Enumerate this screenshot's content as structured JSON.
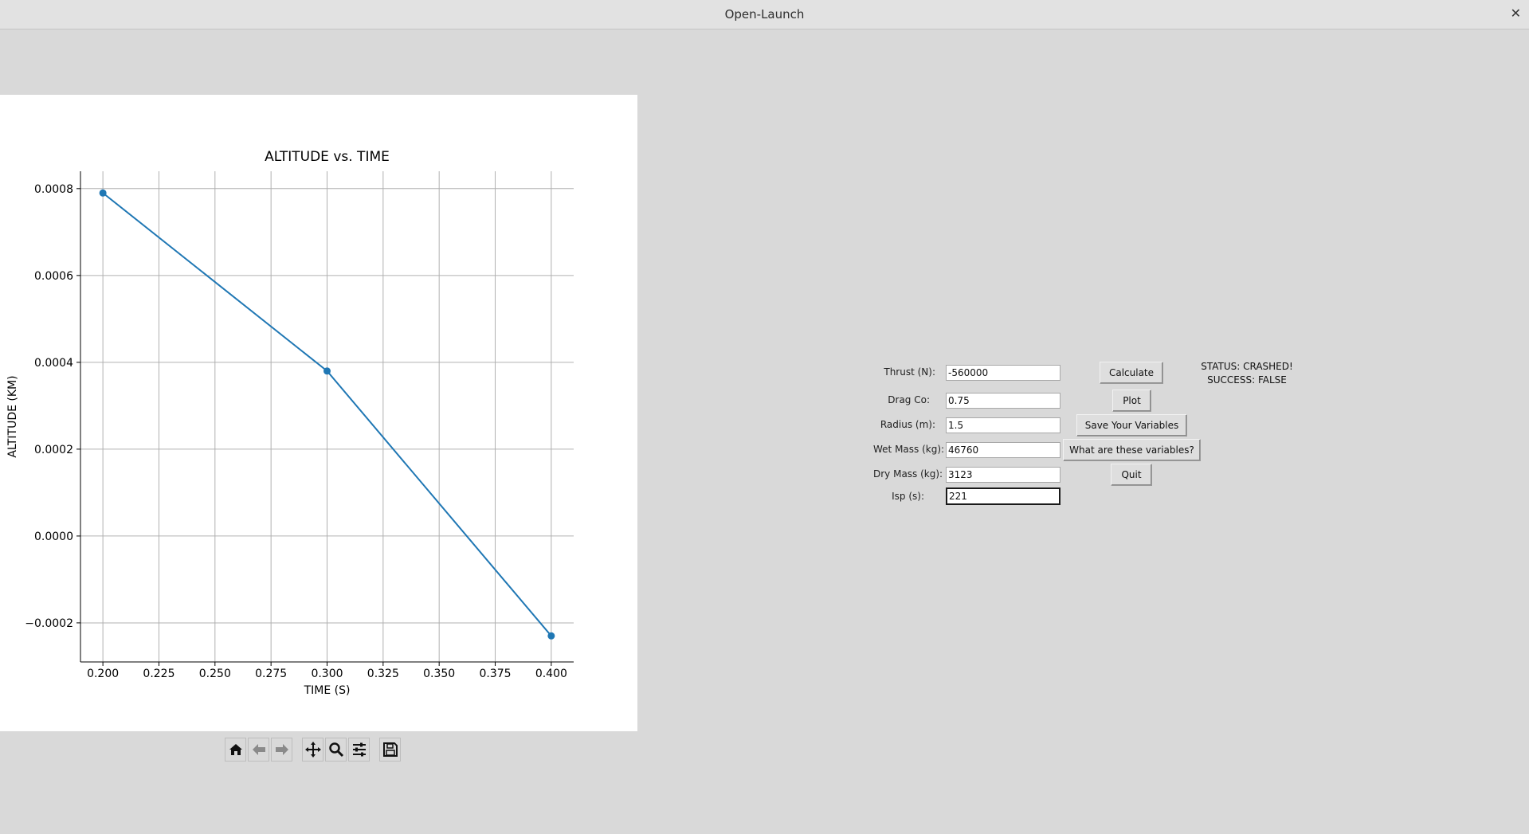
{
  "window": {
    "title": "Open-Launch",
    "close_glyph": "✕"
  },
  "chart_data": {
    "type": "line",
    "title": "ALTITUDE vs. TIME",
    "xlabel": "TIME (S)",
    "ylabel": "ALTITUDE (KM)",
    "x": [
      0.2,
      0.3,
      0.4
    ],
    "series": [
      {
        "values": [
          0.00079,
          0.00038,
          -0.00023
        ]
      }
    ],
    "xlim": [
      0.19,
      0.41
    ],
    "ylim": [
      -0.00029,
      0.00084
    ],
    "xticks": [
      0.2,
      0.225,
      0.25,
      0.275,
      0.3,
      0.325,
      0.35,
      0.375,
      0.4
    ],
    "xtick_labels": [
      "0.200",
      "0.225",
      "0.250",
      "0.275",
      "0.300",
      "0.325",
      "0.350",
      "0.375",
      "0.400"
    ],
    "yticks": [
      -0.0002,
      0.0,
      0.0002,
      0.0004,
      0.0006,
      0.0008
    ],
    "ytick_labels": [
      "−0.0002",
      "0.0000",
      "0.0002",
      "0.0004",
      "0.0006",
      "0.0008"
    ],
    "grid": true,
    "marker": "circle",
    "color": "#1f77b4"
  },
  "toolbar": {
    "icons": [
      "home-icon",
      "back-arrow-icon",
      "forward-arrow-icon",
      "pan-icon",
      "zoom-icon",
      "configure-subplots-icon",
      "save-icon"
    ]
  },
  "form": {
    "thrust_label": "Thrust (N):",
    "thrust_value": "-560000",
    "drag_label": "Drag Co:",
    "drag_value": "0.75",
    "radius_label": "Radius (m):",
    "radius_value": "1.5",
    "wet_label": "Wet Mass (kg):",
    "wet_value": "46760",
    "dry_label": "Dry Mass (kg):",
    "dry_value": "3123",
    "isp_label": "Isp (s):",
    "isp_value": "221"
  },
  "buttons": {
    "calculate": "Calculate",
    "plot": "Plot",
    "save": "Save Your Variables",
    "help": "What are these variables?",
    "quit": "Quit"
  },
  "status": {
    "line1": "STATUS: CRASHED!",
    "line2": "SUCCESS: FALSE"
  }
}
